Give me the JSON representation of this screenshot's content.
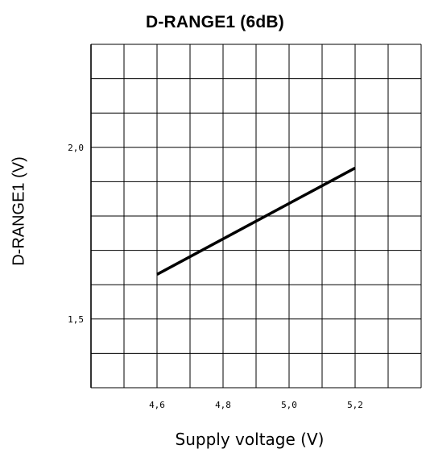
{
  "chart_data": {
    "type": "line",
    "title": "D-RANGE1 (6dB)",
    "xlabel": "Supply voltage (V)",
    "ylabel": "D-RANGE1 (V)",
    "xlim": [
      4.4,
      5.4
    ],
    "ylim": [
      1.3,
      2.3
    ],
    "x_ticks": [
      {
        "value": 4.6,
        "label": "4,6"
      },
      {
        "value": 4.8,
        "label": "4,8"
      },
      {
        "value": 5.0,
        "label": "5,0"
      },
      {
        "value": 5.2,
        "label": "5,2"
      }
    ],
    "y_ticks": [
      {
        "value": 2.0,
        "label": "2,0"
      },
      {
        "value": 1.5,
        "label": "1,5"
      }
    ],
    "grid": true,
    "series": [
      {
        "x": [
          4.6,
          5.2
        ],
        "y": [
          1.63,
          1.94
        ]
      }
    ]
  }
}
